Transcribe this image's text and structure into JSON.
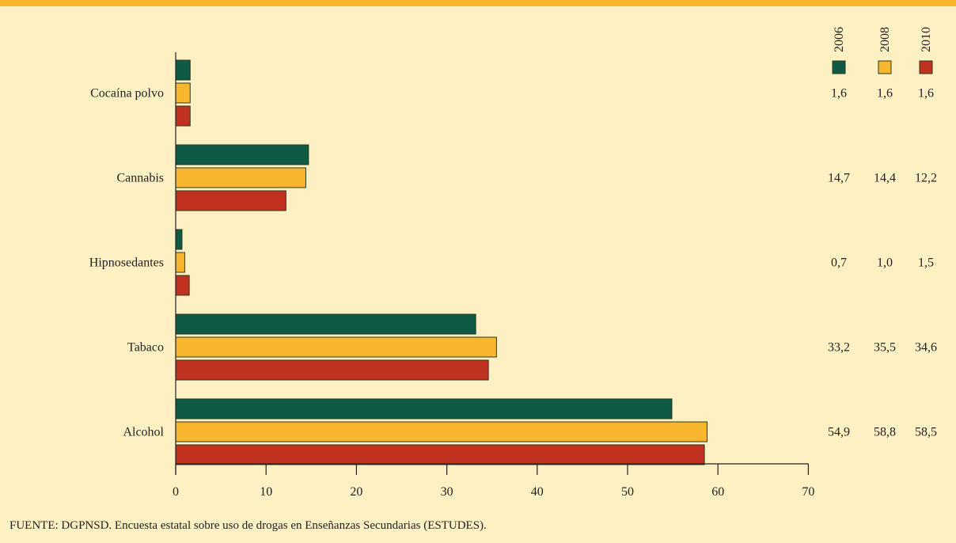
{
  "chart_data": {
    "type": "bar",
    "orientation": "horizontal",
    "categories": [
      "Cocaína polvo",
      "Cannabis",
      "Hipnosedantes",
      "Tabaco",
      "Alcohol"
    ],
    "series": [
      {
        "name": "2006",
        "color": "#0e5a45",
        "values": [
          1.6,
          14.7,
          0.7,
          33.2,
          54.9
        ],
        "labels": [
          "1,6",
          "14,7",
          "0,7",
          "33,2",
          "54,9"
        ]
      },
      {
        "name": "2008",
        "color": "#f8b62e",
        "values": [
          1.6,
          14.4,
          1.0,
          35.5,
          58.8
        ],
        "labels": [
          "1,6",
          "14,4",
          "1,0",
          "35,5",
          "58,8"
        ]
      },
      {
        "name": "2010",
        "color": "#c0311f",
        "values": [
          1.6,
          12.2,
          1.5,
          34.6,
          58.5
        ],
        "labels": [
          "1,6",
          "12,2",
          "1,5",
          "34,6",
          "58,5"
        ]
      }
    ],
    "xlim": [
      0,
      70
    ],
    "x_ticks": [
      0,
      10,
      20,
      30,
      40,
      50,
      60,
      70
    ],
    "grid": false,
    "legend_placement": "top-right"
  },
  "source_note": "FUENTE: DGPNSD. Encuesta estatal sobre uso de drogas en Enseñanzas Secundarias (ESTUDES)."
}
